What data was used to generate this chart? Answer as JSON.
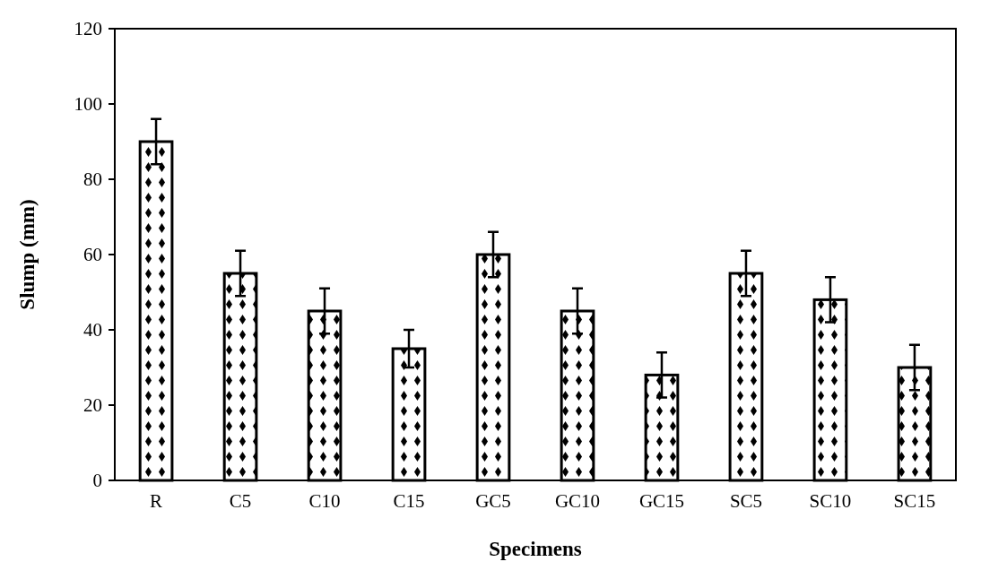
{
  "chart_data": {
    "type": "bar",
    "xlabel": "Specimens",
    "ylabel": "Slump (mm)",
    "categories": [
      "R",
      "C5",
      "C10",
      "C15",
      "GC5",
      "GC10",
      "GC15",
      "SC5",
      "SC10",
      "SC15"
    ],
    "values": [
      90,
      55,
      45,
      35,
      60,
      45,
      28,
      55,
      48,
      30
    ],
    "errors": [
      6,
      6,
      6,
      5,
      6,
      6,
      6,
      6,
      6,
      6
    ],
    "color": "#000000",
    "ylim": [
      0,
      120
    ],
    "yticks": [
      0,
      20,
      40,
      60,
      80,
      100,
      120
    ],
    "grid": false
  }
}
